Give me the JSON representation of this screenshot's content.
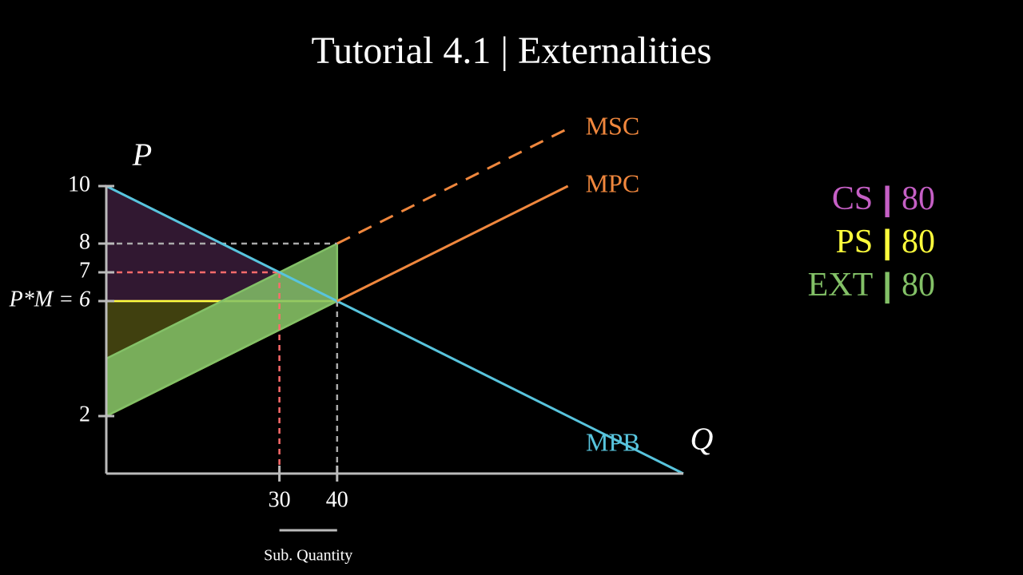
{
  "chart_data": {
    "type": "surplus",
    "title": "Tutorial 4.1 | Externalities",
    "x_label": "Q",
    "y_label": "P",
    "xlim": [
      0,
      100
    ],
    "ylim": [
      0,
      10
    ],
    "xticks": [
      30,
      40
    ],
    "yticks": [
      10,
      8,
      7,
      {
        "value": 6,
        "label": "P*M = 6"
      },
      2
    ],
    "axis_color": "#bbbbbb",
    "series": [
      {
        "name": "MPB",
        "color": "#58c4dd",
        "x": [
          0,
          100
        ],
        "values": [
          10,
          0
        ],
        "dashed": false
      },
      {
        "name": "MPC",
        "color": "#f0873d",
        "x": [
          40,
          80
        ],
        "values": [
          6,
          10
        ],
        "dashed": false
      },
      {
        "name": "MSC",
        "color": "#f0873d",
        "x": [
          40,
          80
        ],
        "values": [
          8,
          12
        ],
        "dashed": true
      }
    ],
    "areas": [
      {
        "name": "CS",
        "color": "#c55fc5",
        "opacity": 0.25,
        "x": [
          0,
          40,
          0
        ],
        "values": [
          10,
          6,
          6
        ],
        "total": 80
      },
      {
        "name": "PS",
        "color": "#ffff3c",
        "opacity": 0.25,
        "x": [
          0,
          40,
          0
        ],
        "values": [
          6,
          6,
          2
        ],
        "total": 80
      },
      {
        "name": "EXT",
        "color": "#83c167",
        "opacity": 0.85,
        "x": [
          0,
          40,
          40,
          0
        ],
        "values": [
          2,
          6,
          8,
          4
        ],
        "total": 80
      }
    ],
    "legend_separator": "|",
    "guides": [
      {
        "color": "#aaaaaa",
        "x": [
          0,
          40
        ],
        "values": [
          8,
          8
        ]
      },
      {
        "color": "#aaaaaa",
        "x": [
          40,
          40
        ],
        "values": [
          6,
          0
        ]
      },
      {
        "color": "#ff6b6b",
        "x": [
          0,
          30
        ],
        "values": [
          7,
          7
        ]
      },
      {
        "color": "#ff6b6b",
        "x": [
          30,
          30
        ],
        "values": [
          7,
          0
        ]
      }
    ],
    "bracket": {
      "x": [
        30,
        40
      ],
      "label": "Sub. Quantity"
    }
  }
}
